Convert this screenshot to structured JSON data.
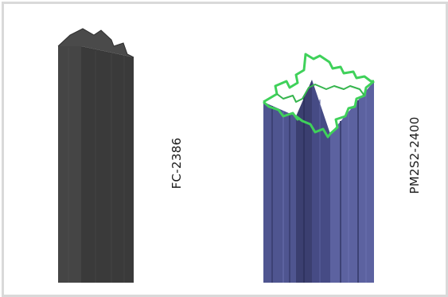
{
  "profiles": [
    {
      "code": "FC-2386",
      "color": "#3f3f3f",
      "icon": "dark-grey-extruded-profile"
    },
    {
      "code": "PM2S2-2400",
      "color": "#5a5f9a",
      "edge_color": "#3fd15a",
      "icon": "blue-hollow-extruded-profile"
    }
  ],
  "frame_border_color": "#d9d9d9"
}
